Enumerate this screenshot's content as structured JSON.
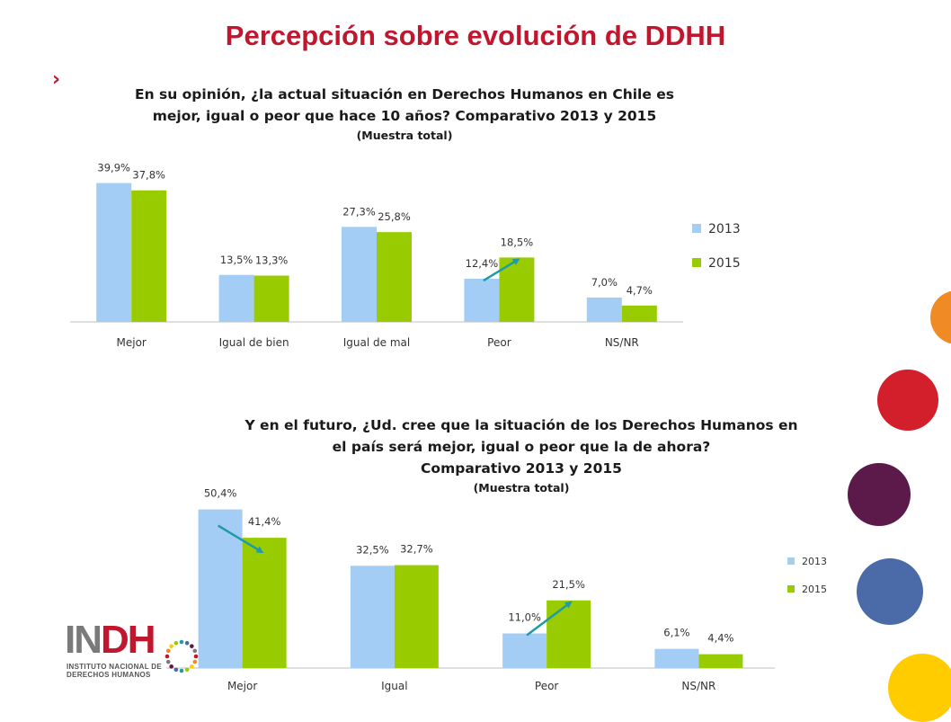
{
  "page": {
    "title": "Percepción sobre evolución de DDHH",
    "bullet": "›"
  },
  "chart_data": [
    {
      "type": "bar",
      "title": "En su opinión, ¿la actual situación en Derechos Humanos en Chile es mejor, igual o peor que hace 10 años? Comparativo 2013 y 2015",
      "title_line1": "En su opinión, ¿la actual situación en Derechos Humanos en Chile es",
      "title_line2": "mejor, igual o peor que hace 10 años? Comparativo 2013 y 2015",
      "subtitle": "(Muestra total)",
      "categories": [
        "Mejor",
        "Igual de bien",
        "Igual de mal",
        "Peor",
        "NS/NR"
      ],
      "series": [
        {
          "name": "2013",
          "values": [
            39.9,
            13.5,
            27.3,
            12.4,
            7.0
          ],
          "labels": [
            "39,9%",
            "13,5%",
            "27,3%",
            "12,4%",
            "7,0%"
          ],
          "color": "#a4cdf5"
        },
        {
          "name": "2015",
          "values": [
            37.8,
            13.3,
            25.8,
            18.5,
            4.7
          ],
          "labels": [
            "37,8%",
            "13,3%",
            "25,8%",
            "18,5%",
            "4,7%"
          ],
          "color": "#99cc00"
        }
      ],
      "legend": "right",
      "grid": false,
      "arrows": [
        {
          "category": "Peor",
          "direction": "up"
        }
      ],
      "arrow_color": "#1f9aa8"
    },
    {
      "type": "bar",
      "title": "Y en el futuro, ¿Ud. cree que la situación de los Derechos Humanos en el país será mejor, igual o peor que la de ahora? Comparativo 2013 y 2015",
      "title_line1": "Y en el futuro, ¿Ud. cree que la situación de los Derechos Humanos en",
      "title_line2": "el país será mejor, igual o peor que la de ahora?",
      "title_line3": "Comparativo 2013 y 2015",
      "subtitle": "(Muestra total)",
      "categories": [
        "Mejor",
        "Igual",
        "Peor",
        "NS/NR"
      ],
      "series": [
        {
          "name": "2013",
          "values": [
            50.4,
            32.5,
            11.0,
            6.1
          ],
          "labels": [
            "50,4%",
            "32,5%",
            "11,0%",
            "6,1%"
          ],
          "color": "#a4cdf5"
        },
        {
          "name": "2015",
          "values": [
            41.4,
            32.7,
            21.5,
            4.4
          ],
          "labels": [
            "41,4%",
            "32,7%",
            "21,5%",
            "4,4%"
          ],
          "color": "#99cc00"
        }
      ],
      "legend": "right",
      "grid": false,
      "arrows": [
        {
          "category": "Mejor",
          "direction": "down"
        },
        {
          "category": "Peor",
          "direction": "up"
        }
      ],
      "arrow_color": "#1f9aa8"
    }
  ],
  "logo": {
    "text_in": "IN",
    "text_dh": "DH",
    "sub_line1": "INSTITUTO NACIONAL DE",
    "sub_line2": "DERECHOS HUMANOS"
  },
  "decor_colors": {
    "orange": "#f08a24",
    "red": "#d21f2b",
    "plum": "#5b1a4a",
    "blue": "#4a6aa8",
    "yellow": "#ffcc00"
  }
}
